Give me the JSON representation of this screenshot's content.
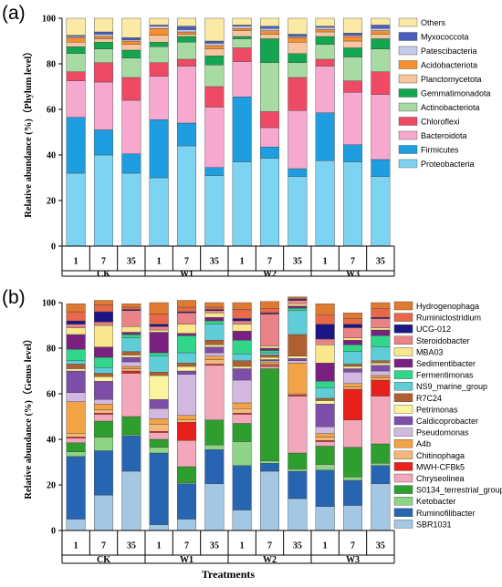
{
  "chart_data": [
    {
      "type": "bar",
      "panel_label": "(a)",
      "ylabel": "Relative abundance (%)（Phylum level）",
      "ylim": [
        0,
        100
      ],
      "yticks": [
        0,
        20,
        40,
        60,
        80,
        100
      ],
      "stacked": true,
      "categories": [
        "1",
        "7",
        "35",
        "1",
        "7",
        "35",
        "1",
        "7",
        "35",
        "1",
        "7",
        "35"
      ],
      "groups": [
        {
          "name": "CK",
          "span": [
            0,
            2
          ]
        },
        {
          "name": "W1",
          "span": [
            3,
            5
          ]
        },
        {
          "name": "W2",
          "span": [
            6,
            8
          ]
        },
        {
          "name": "W3",
          "span": [
            9,
            11
          ]
        }
      ],
      "legend_order": [
        "Others",
        "Myxococcota",
        "Patescibacteria",
        "Acidobacteriota",
        "Planctomycetota",
        "Gemmatimonadota",
        "Actinobacteriota",
        "Chloroflexi",
        "Bacteroidota",
        "Firmicutes",
        "Proteobacteria"
      ],
      "series": [
        {
          "name": "Proteobacteria",
          "color": "#7dd3f2",
          "values": [
            32,
            40,
            32,
            30,
            44,
            31,
            37,
            38.5,
            30.5,
            37.5,
            37,
            30.5
          ]
        },
        {
          "name": "Firmicutes",
          "color": "#1e9ee0",
          "values": [
            24.5,
            11,
            8.5,
            25.5,
            10,
            3.5,
            28.5,
            5,
            3.5,
            21,
            7.5,
            7.5
          ]
        },
        {
          "name": "Bacteroidota",
          "color": "#f7a8cf",
          "values": [
            16,
            21,
            23.5,
            19,
            25,
            26.5,
            15.5,
            8.5,
            25.5,
            20.5,
            23,
            28.5
          ]
        },
        {
          "name": "Chloroflexi",
          "color": "#ee4a66",
          "values": [
            4,
            8.5,
            10,
            6,
            3,
            9,
            6,
            7,
            14.5,
            3,
            5,
            10
          ]
        },
        {
          "name": "Actinobacteriota",
          "color": "#a8dba3",
          "values": [
            8,
            6,
            8.5,
            7,
            7.5,
            9.5,
            4,
            21.5,
            6.5,
            6.5,
            10.5,
            10
          ]
        },
        {
          "name": "Gemmatimonadota",
          "color": "#14a550",
          "values": [
            3,
            3,
            3.5,
            2,
            2.5,
            4,
            1,
            10.5,
            4,
            3.5,
            4,
            4.5
          ]
        },
        {
          "name": "Planctomycetota",
          "color": "#f7c6a0",
          "values": [
            2,
            1.5,
            2.5,
            3,
            1,
            3,
            2.5,
            2,
            5,
            2,
            3,
            2
          ]
        },
        {
          "name": "Acidobacteriota",
          "color": "#f78f2d",
          "values": [
            2,
            1,
            1.5,
            3,
            1,
            1.5,
            1,
            1.5,
            2,
            1,
            2,
            1.5
          ]
        },
        {
          "name": "Patescibacteria",
          "color": "#c7c9e8",
          "values": [
            0.5,
            1,
            0.5,
            1,
            1,
            1,
            1,
            1,
            0.5,
            1,
            0.5,
            1
          ]
        },
        {
          "name": "Myxococcota",
          "color": "#4a5fbd",
          "values": [
            0.5,
            1,
            1,
            0.5,
            1.5,
            1,
            0.5,
            1,
            1,
            0.5,
            1,
            1.5
          ]
        },
        {
          "name": "Others",
          "color": "#fbeaa6",
          "values": [
            7.5,
            6,
            8.5,
            3,
            3.5,
            10,
            3,
            3.5,
            7,
            3.5,
            6.5,
            3
          ]
        }
      ]
    },
    {
      "type": "bar",
      "panel_label": "(b)",
      "ylabel": "Relative abundance (%)（Genus level）",
      "xlabel": "Treatments",
      "ylim": [
        0,
        100
      ],
      "yticks": [
        0,
        20,
        40,
        60,
        80,
        100
      ],
      "stacked": true,
      "categories": [
        "1",
        "7",
        "35",
        "1",
        "7",
        "35",
        "1",
        "7",
        "35",
        "1",
        "7",
        "35"
      ],
      "groups": [
        {
          "name": "CK",
          "span": [
            0,
            2
          ]
        },
        {
          "name": "W1",
          "span": [
            3,
            5
          ]
        },
        {
          "name": "W2",
          "span": [
            6,
            8
          ]
        },
        {
          "name": "W3",
          "span": [
            9,
            11
          ]
        }
      ],
      "legend_order": [
        "Hydrogenophaga",
        "Ruminiclostridium",
        "UCG-012",
        "Steroidobacter",
        "MBA03",
        "Sedimentibacter",
        "Fermentimonas",
        "NS9_marine_group",
        "R7C24",
        "Petrimonas",
        "Caldicoprobacter",
        "Pseudomonas",
        "A4b",
        "Chitinophaga",
        "MWH-CFBk5",
        "Chryseolinea",
        "S0134_terrestrial_group",
        "Ketobacter",
        "Ruminofilibacter",
        "SBR1031"
      ],
      "series": [
        {
          "name": "SBR1031",
          "color": "#a4c8e4",
          "values": [
            5,
            15.5,
            26,
            2.5,
            5,
            20.5,
            9,
            26,
            14,
            10.5,
            11,
            20.5
          ]
        },
        {
          "name": "Ruminofilibacter",
          "color": "#2764b2",
          "values": [
            27.5,
            19.5,
            15.5,
            31.5,
            15.5,
            15,
            19.5,
            3.5,
            12,
            16,
            11,
            8
          ]
        },
        {
          "name": "Ketobacter",
          "color": "#8fd486",
          "values": [
            2,
            6,
            0.5,
            2.5,
            0.5,
            2,
            10.5,
            1,
            1,
            2.5,
            1.5,
            1
          ]
        },
        {
          "name": "S0134_terrestrial_group",
          "color": "#2e9e2e",
          "values": [
            4,
            7,
            8,
            3.5,
            7,
            11,
            8,
            40.5,
            7,
            8,
            13,
            8.5
          ]
        },
        {
          "name": "Chryseolinea",
          "color": "#f2a7bb",
          "values": [
            2,
            3,
            19,
            3,
            11.5,
            24,
            4,
            1,
            25,
            2,
            12,
            21
          ]
        },
        {
          "name": "MWH-CFBk5",
          "color": "#e8201c",
          "values": [
            0.5,
            0.5,
            1,
            0.5,
            8,
            0.5,
            0.5,
            0.5,
            0.5,
            0.5,
            13.5,
            7
          ]
        },
        {
          "name": "Chitinophaga",
          "color": "#f4b87c",
          "values": [
            1.5,
            1.5,
            1,
            3,
            1,
            2,
            2,
            0.5,
            0.5,
            1.5,
            1,
            1
          ]
        },
        {
          "name": "A4b",
          "color": "#f2a444",
          "values": [
            14,
            2.5,
            1,
            2.5,
            2,
            1.5,
            2.5,
            1,
            13.5,
            1.5,
            1.5,
            1
          ]
        },
        {
          "name": "Pseudomonas",
          "color": "#d3b8e2",
          "values": [
            4,
            2,
            2,
            4.5,
            18,
            1.5,
            10,
            0.5,
            1,
            3,
            5,
            2
          ]
        },
        {
          "name": "Caldicoprobacter",
          "color": "#7c4ea8",
          "values": [
            9.5,
            8,
            2,
            4,
            1.5,
            2.5,
            5,
            0.5,
            1,
            10,
            1.5,
            2.5
          ]
        },
        {
          "name": "Petrimonas",
          "color": "#fbf49c",
          "values": [
            1,
            2,
            1,
            10.5,
            2,
            1,
            1,
            1,
            1,
            1.5,
            1,
            1
          ]
        },
        {
          "name": "R7C24",
          "color": "#b06030",
          "values": [
            2,
            1.5,
            1.5,
            1.5,
            1.5,
            2,
            2.5,
            1,
            9.5,
            1,
            1,
            1
          ]
        },
        {
          "name": "NS9_marine_group",
          "color": "#5ecdd8",
          "values": [
            1.5,
            2.5,
            6,
            7,
            4.5,
            7,
            3,
            1,
            10.5,
            4.5,
            5.5,
            6
          ]
        },
        {
          "name": "Fermentimonas",
          "color": "#32d68a",
          "values": [
            5,
            4.5,
            1.5,
            1.5,
            7.5,
            1.5,
            6,
            1,
            1,
            3,
            3,
            5
          ]
        },
        {
          "name": "Sedimentibacter",
          "color": "#7a2080",
          "values": [
            6.5,
            4.5,
            1,
            9,
            1,
            1.5,
            4,
            1,
            1,
            8,
            2,
            2.5
          ]
        },
        {
          "name": "MBA03",
          "color": "#f8e78c",
          "values": [
            3,
            9.5,
            2.5,
            1,
            4,
            2,
            3,
            1,
            1,
            8,
            1,
            1
          ]
        },
        {
          "name": "Steroidobacter",
          "color": "#e88488",
          "values": [
            1.5,
            1.5,
            7,
            1.5,
            5,
            1,
            1.5,
            14,
            1.5,
            2.5,
            4.5,
            4
          ]
        },
        {
          "name": "UCG-012",
          "color": "#1a1686",
          "values": [
            1.5,
            4.5,
            0.5,
            1,
            0.5,
            0.5,
            1,
            0.5,
            0.5,
            6.5,
            1.5,
            0.5
          ]
        },
        {
          "name": "Ruminiclostridium",
          "color": "#e8684a",
          "values": [
            4,
            3,
            1,
            4.5,
            2,
            1,
            4,
            2,
            0.5,
            4,
            2.5,
            4
          ]
        },
        {
          "name": "Hydrogenophaga",
          "color": "#e07a30",
          "values": [
            3.5,
            2,
            1.5,
            5,
            3,
            2,
            3,
            3,
            0.5,
            5,
            2.5,
            2.5
          ]
        }
      ]
    }
  ]
}
